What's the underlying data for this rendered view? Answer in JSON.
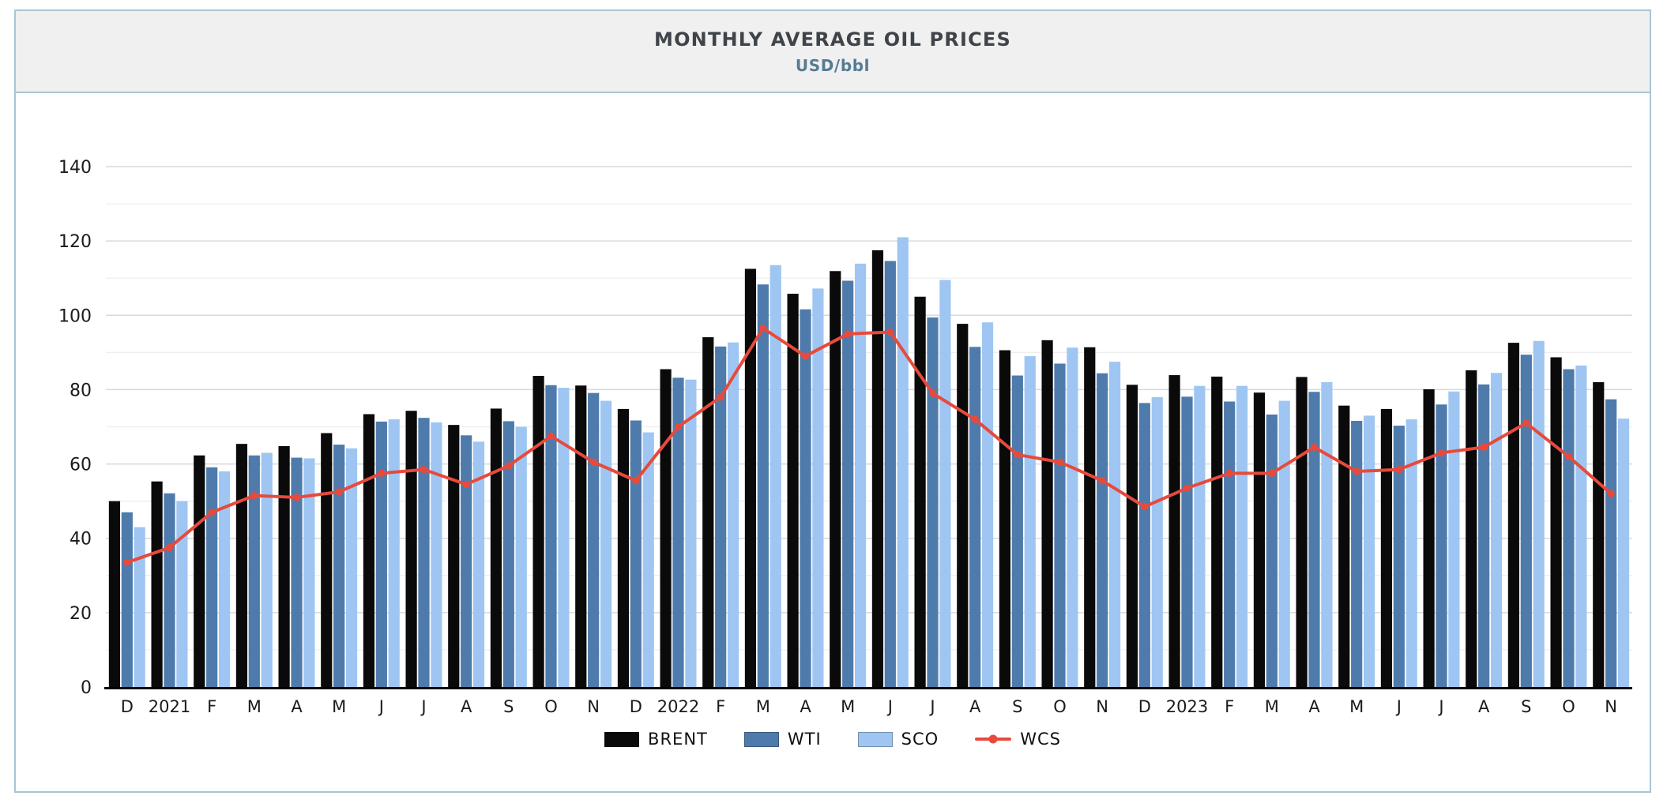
{
  "header": {
    "title": "MONTHLY AVERAGE OIL PRICES",
    "subtitle": "USD/bbl"
  },
  "chart_data": {
    "type": "bar",
    "title": "MONTHLY AVERAGE OIL PRICES",
    "subtitle": "USD/bbl",
    "xlabel": "",
    "ylabel": "USD/bbl",
    "ylim": [
      0,
      140
    ],
    "ytick_step": 20,
    "yminor_step": 10,
    "grid": true,
    "legend_position": "bottom",
    "categories": [
      "D",
      "2021",
      "F",
      "M",
      "A",
      "M",
      "J",
      "J",
      "A",
      "S",
      "O",
      "N",
      "D",
      "2022",
      "F",
      "M",
      "A",
      "M",
      "J",
      "J",
      "A",
      "S",
      "O",
      "N",
      "D",
      "2023",
      "F",
      "M",
      "A",
      "M",
      "J",
      "J",
      "A",
      "S",
      "O",
      "N"
    ],
    "series": [
      {
        "name": "BRENT",
        "chart_type": "bar",
        "color": "#0a0a0a",
        "values": [
          50,
          55.3,
          62.3,
          65.4,
          64.8,
          68.3,
          73.4,
          74.3,
          70.5,
          74.9,
          83.7,
          81.1,
          74.8,
          85.5,
          94.1,
          112.5,
          105.8,
          111.9,
          117.5,
          105,
          97.7,
          90.6,
          93.3,
          91.4,
          81.3,
          83.9,
          83.5,
          79.2,
          83.4,
          75.7,
          74.8,
          80.1,
          85.2,
          92.6,
          88.7,
          82
        ]
      },
      {
        "name": "WTI",
        "chart_type": "bar",
        "color": "#4e7bac",
        "values": [
          47,
          52.1,
          59.1,
          62.3,
          61.7,
          65.2,
          71.4,
          72.4,
          67.7,
          71.5,
          81.2,
          79.1,
          71.7,
          83.2,
          91.6,
          108.3,
          101.6,
          109.3,
          114.6,
          99.4,
          91.5,
          83.8,
          87,
          84.4,
          76.4,
          78.1,
          76.8,
          73.3,
          79.4,
          71.6,
          70.3,
          76,
          81.4,
          89.4,
          85.5,
          77.4
        ]
      },
      {
        "name": "SCO",
        "chart_type": "bar",
        "color": "#9fc6f2",
        "values": [
          43,
          50,
          58,
          63,
          61.5,
          64.2,
          72,
          71.2,
          66,
          70,
          80.5,
          77,
          68.5,
          82.7,
          92.7,
          113.5,
          107.2,
          113.9,
          121,
          109.5,
          98.1,
          89,
          91.3,
          87.5,
          78,
          81,
          81,
          77,
          82,
          73,
          72,
          79.5,
          84.5,
          93.1,
          86.5,
          72.2
        ]
      },
      {
        "name": "WCS",
        "chart_type": "line",
        "color": "#e74a3c",
        "values": [
          33.5,
          37.5,
          47,
          51.5,
          51,
          52.5,
          57.5,
          58.5,
          54.5,
          59.5,
          67.5,
          60.5,
          55.5,
          70,
          78,
          96.5,
          89,
          95,
          95.5,
          79,
          72,
          62.5,
          60.5,
          55.5,
          48.5,
          53.5,
          57.5,
          57.5,
          64.5,
          58,
          58.5,
          63,
          64.5,
          71,
          62,
          52
        ]
      }
    ]
  }
}
